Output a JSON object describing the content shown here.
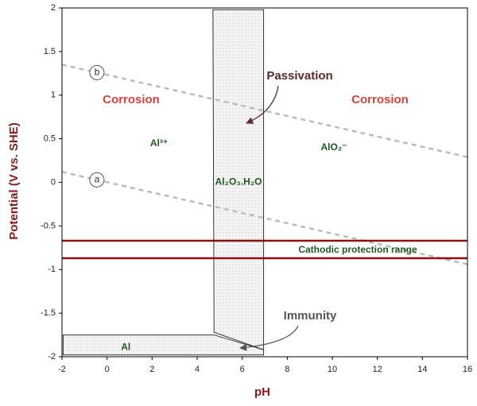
{
  "chart_data": {
    "type": "pourbaix",
    "xlabel": "pH",
    "ylabel": "Potential (V vs. SHE)",
    "xlim": [
      -2,
      16
    ],
    "ylim": [
      -2,
      2
    ],
    "xticks": [
      -2,
      0,
      2,
      4,
      6,
      8,
      10,
      12,
      14,
      16
    ],
    "yticks": [
      2,
      1.5,
      1,
      0.5,
      0,
      -0.5,
      -1,
      -1.5,
      -2
    ],
    "series": [
      {
        "name": "b",
        "color": "#bbbbbb",
        "style": "dashed",
        "x": [
          -2,
          16
        ],
        "values": [
          1.35,
          0.29
        ]
      },
      {
        "name": "a",
        "color": "#bbbbbb",
        "style": "dashed",
        "x": [
          -2,
          16
        ],
        "values": [
          0.12,
          -0.94
        ]
      }
    ],
    "bands": [
      {
        "label": "Cathodic protection range",
        "color": "#8b1010",
        "values": [
          -0.67,
          -0.87
        ]
      }
    ],
    "regions": [
      {
        "label": "Al₂O₃.H₂O",
        "color": "#f2f2f2",
        "x": [
          4.7,
          6.95,
          6.95,
          4.75
        ],
        "values": [
          1.98,
          1.98,
          -1.92,
          -1.72
        ]
      },
      {
        "label": "Al",
        "color": "#f2f2f2",
        "x": [
          -1.95,
          4.75,
          6.95,
          6.95,
          -1.95
        ],
        "values": [
          -1.75,
          -1.75,
          -1.92,
          -1.98,
          -1.98
        ]
      }
    ],
    "annotations": [
      "Corrosion",
      "Corrosion",
      "Al³⁺",
      "AlO₂⁻",
      "Passivation",
      "Immunity"
    ]
  }
}
